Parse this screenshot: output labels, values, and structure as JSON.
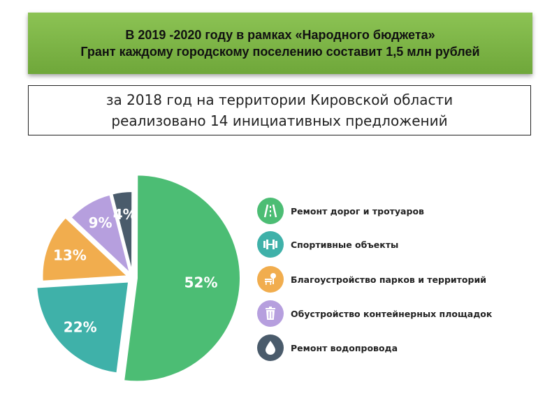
{
  "header": {
    "line1": "В 2019 -2020 году в рамках «Народного бюджета»",
    "line2": "Грант каждому городскому поселению составит 1,5 млн  рублей"
  },
  "subtitle": {
    "line1": "за 2018 год на территории Кировской области",
    "line2": "реализовано 14 инициативных предложений"
  },
  "chart_data": {
    "type": "pie",
    "slices": [
      {
        "label": "Ремонт дорог и тротуаров",
        "value": 52,
        "value_label": "52%",
        "color": "#4cbd74",
        "icon": "road-icon"
      },
      {
        "label": "Спортивные объекты",
        "value": 22,
        "value_label": "22%",
        "color": "#3fb1a9",
        "icon": "dumbbell-icon"
      },
      {
        "label": "Благоустройство  парков и территорий",
        "value": 13,
        "value_label": "13%",
        "color": "#f1ad4e",
        "icon": "park-bench-icon"
      },
      {
        "label": "Обустройство  контейнерных  площадок",
        "value": 9,
        "value_label": "9%",
        "color": "#b69fde",
        "icon": "trash-bin-icon"
      },
      {
        "label": "Ремонт водопровода",
        "value": 4,
        "value_label": "4%",
        "color": "#4a5b6b",
        "icon": "water-drop-icon"
      }
    ],
    "legend_position": "right",
    "label_color": "#ffffff"
  }
}
